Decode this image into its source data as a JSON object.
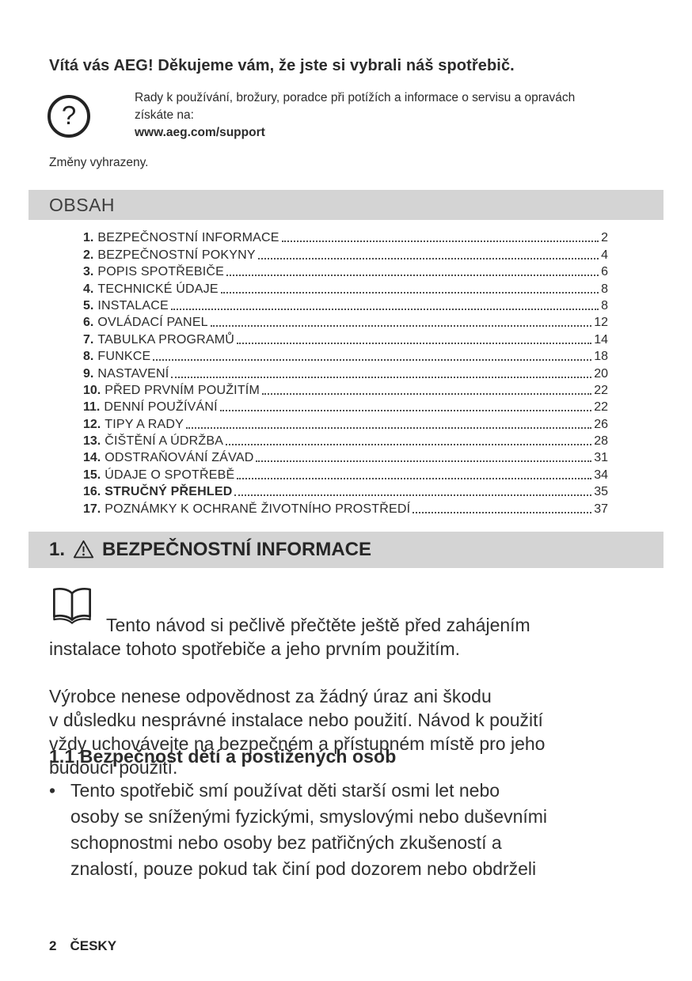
{
  "welcome": {
    "title": "Vítá vás AEG! Děkujeme vám, že jste si vybrali náš spotřebič.",
    "help_icon_glyph": "?",
    "support_text": "Rady k používání, brožury, poradce při potížích a informace o servisu a opravách\nzískáte na:",
    "support_url": "www.aeg.com/support",
    "changes_note": "Změny vyhrazeny."
  },
  "toc": {
    "header": "OBSAH",
    "items": [
      {
        "num": "1.",
        "label": "BEZPEČNOSTNÍ INFORMACE",
        "page": "2",
        "bold": false
      },
      {
        "num": "2.",
        "label": "BEZPEČNOSTNÍ POKYNY",
        "page": "4",
        "bold": false
      },
      {
        "num": "3.",
        "label": "POPIS SPOTŘEBIČE",
        "page": "6",
        "bold": false
      },
      {
        "num": "4.",
        "label": "TECHNICKÉ ÚDAJE",
        "page": "8",
        "bold": false
      },
      {
        "num": "5.",
        "label": "INSTALACE",
        "page": "8",
        "bold": false
      },
      {
        "num": "6.",
        "label": "OVLÁDACÍ PANEL",
        "page": "12",
        "bold": false
      },
      {
        "num": "7.",
        "label": "TABULKA PROGRAMŮ",
        "page": "14",
        "bold": false
      },
      {
        "num": "8.",
        "label": "FUNKCE",
        "page": "18",
        "bold": false
      },
      {
        "num": "9.",
        "label": "NASTAVENÍ",
        "page": "20",
        "bold": false
      },
      {
        "num": "10.",
        "label": "PŘED PRVNÍM POUŽITÍM",
        "page": "22",
        "bold": false
      },
      {
        "num": "11.",
        "label": "DENNÍ POUŽÍVÁNÍ",
        "page": "22",
        "bold": false
      },
      {
        "num": "12.",
        "label": "TIPY A RADY",
        "page": "26",
        "bold": false
      },
      {
        "num": "13.",
        "label": "ČIŠTĚNÍ A ÚDRŽBA",
        "page": "28",
        "bold": false
      },
      {
        "num": "14.",
        "label": "ODSTRAŇOVÁNÍ ZÁVAD",
        "page": "31",
        "bold": false
      },
      {
        "num": "15.",
        "label": "ÚDAJE O SPOTŘEBĚ",
        "page": "34",
        "bold": false
      },
      {
        "num": "16.",
        "label": "STRUČNÝ PŘEHLED",
        "page": "35",
        "bold": true
      },
      {
        "num": "17.",
        "label": "POZNÁMKY K OCHRANĚ ŽIVOTNÍHO PROSTŘEDÍ",
        "page": "37",
        "bold": false
      }
    ]
  },
  "section1": {
    "heading_num": "1.",
    "warning_icon": "warning-triangle",
    "heading_title": "BEZPEČNOSTNÍ INFORMACE",
    "book_icon": "open-book",
    "intro_p1": "Tento návod si pečlivě přečtěte ještě před zahájením\ninstalace tohoto spotřebiče a jeho prvním použitím.",
    "intro_p2": "Výrobce nenese odpovědnost za žádný úraz ani škodu\nv důsledku nesprávné instalace nebo použití. Návod k použití\nvždy uchovávejte na bezpečném a přístupném místě pro jeho\nbudoucí použití.",
    "subsection_title": "1.1 Bezpečnost dětí a postižených osob",
    "bullet_glyph": "•",
    "bullets": [
      "Tento spotřebič smí používat děti starší osmi let nebo\nosoby se sníženými fyzickými, smyslovými nebo duševními\nschopnostmi nebo osoby bez patřičných zkušeností a\nznalostí, pouze pokud tak činí pod dozorem nebo obdrželi"
    ]
  },
  "footer": {
    "page_number": "2",
    "language": "ČESKY"
  },
  "colors": {
    "bar-gray": "#d4d4d4",
    "ink": "#2b2b2b",
    "ink-soft": "#3d3d3d",
    "dots": "#4c4c4c"
  }
}
